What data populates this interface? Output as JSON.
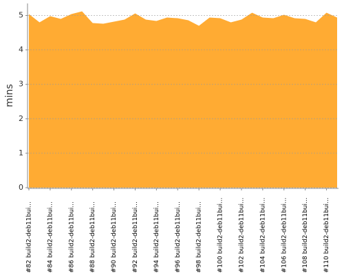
{
  "chart_data": {
    "type": "area",
    "y_label": "mins",
    "color": "#ffab33",
    "categories": [
      "#82 build2-deb11bui...",
      null,
      "#84 build2-deb11bui...",
      null,
      "#86 build2-deb11bui...",
      null,
      "#88 build2-deb11bui...",
      null,
      "#90 build2-deb11bui...",
      null,
      "#92 build2-deb11bui...",
      null,
      "#94 build2-deb11bui...",
      null,
      "#96 build2-deb11bui...",
      null,
      "#98 build2-deb11bui...",
      null,
      "#100 build2-deb11bui...",
      null,
      "#102 build2-deb11bui...",
      null,
      "#104 build2-deb11bui...",
      null,
      "#106 build2-deb11bui...",
      null,
      "#108 build2-deb11bui...",
      null,
      "#110 build2-deb11bui...",
      null
    ],
    "values": [
      5.04,
      4.8,
      4.98,
      4.9,
      5.04,
      5.12,
      4.78,
      4.76,
      4.82,
      4.88,
      5.06,
      4.88,
      4.84,
      4.94,
      4.92,
      4.86,
      4.7,
      4.94,
      4.92,
      4.8,
      4.88,
      5.08,
      4.94,
      4.92,
      5.02,
      4.92,
      4.9,
      4.8,
      5.08,
      4.94
    ],
    "ylim": [
      0,
      5.35
    ],
    "yticks": [
      0,
      1,
      2,
      3,
      4,
      5
    ],
    "grid": true
  }
}
